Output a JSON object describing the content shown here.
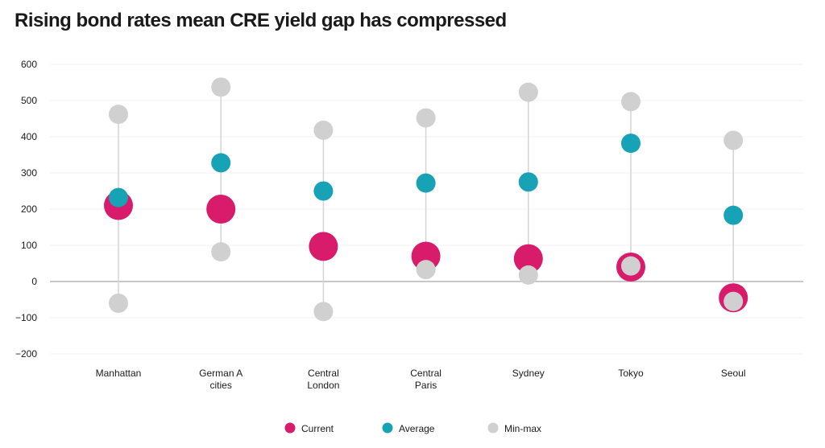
{
  "chart_data": {
    "type": "scatter",
    "title": "Rising bond rates mean CRE yield gap has compressed",
    "ylim": [
      -200,
      600
    ],
    "yticks": [
      600,
      500,
      400,
      300,
      200,
      100,
      0,
      -100,
      -200
    ],
    "ytick_labels": [
      "600",
      "500",
      "400",
      "300",
      "200",
      "100",
      "0",
      "−100",
      "−200"
    ],
    "grid": true,
    "legend_position": "bottom-center",
    "categories": [
      [
        "Manhattan"
      ],
      [
        "German A",
        "cities"
      ],
      [
        "Central",
        "London"
      ],
      [
        "Central",
        "Paris"
      ],
      [
        "Sydney"
      ],
      [
        "Tokyo"
      ],
      [
        "Seoul"
      ]
    ],
    "series": [
      {
        "name": "Current",
        "color": "#d81b6a",
        "values": [
          210,
          200,
          97,
          70,
          63,
          40,
          -45
        ]
      },
      {
        "name": "Average",
        "color": "#17a2b5",
        "values": [
          232,
          328,
          250,
          272,
          275,
          382,
          183
        ]
      },
      {
        "name": "Min-max",
        "color": "#d0d0d0",
        "min": [
          -60,
          82,
          -83,
          33,
          18,
          43,
          -55
        ],
        "max": [
          462,
          537,
          418,
          452,
          523,
          497,
          390
        ]
      }
    ]
  }
}
